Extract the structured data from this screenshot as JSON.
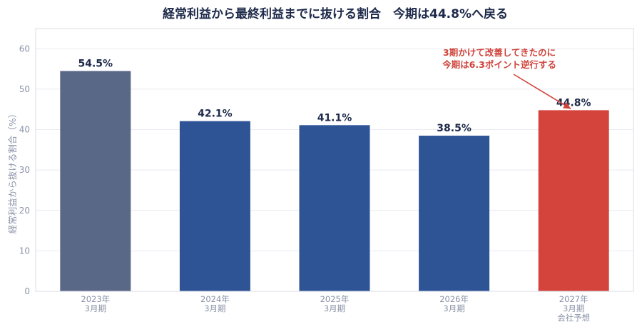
{
  "chart_data": {
    "type": "bar",
    "title": "経常利益から最終利益までに抜ける割合　今期は44.8%へ戻る",
    "ylabel": "経常利益から抜ける割合（%）",
    "xlabel": "",
    "ylim": [
      0,
      65
    ],
    "yticks": [
      0,
      10,
      20,
      30,
      40,
      50,
      60
    ],
    "grid": true,
    "categories": [
      [
        "2023年",
        "3月期"
      ],
      [
        "2024年",
        "3月期"
      ],
      [
        "2025年",
        "3月期"
      ],
      [
        "2026年",
        "3月期"
      ],
      [
        "2027年",
        "3月期",
        "会社予想"
      ]
    ],
    "values": [
      54.5,
      42.1,
      41.1,
      38.5,
      44.8
    ],
    "data_labels": [
      "54.5%",
      "42.1%",
      "41.1%",
      "38.5%",
      "44.8%"
    ],
    "colors": [
      "#5a6888",
      "#2e5496",
      "#2e5496",
      "#2e5496",
      "#d5443c"
    ],
    "annotation": {
      "lines": [
        "3期かけて改善してきたのに",
        "今期は6.3ポイント逆行する"
      ],
      "color": "#d0433b",
      "target_index": 4
    }
  }
}
